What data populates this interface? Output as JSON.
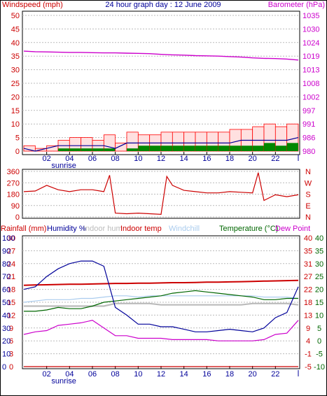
{
  "title": "24 hour graph day : 12 June 2009",
  "colors": {
    "wind": "#cc0000",
    "gust": "#ff0000",
    "avgwind": "#000099",
    "dir": "#cc0000",
    "baro": "#cc00cc",
    "hum": "#000099",
    "indoorhum": "#bbbbbb",
    "indoortemp": "#cc0000",
    "windchill": "#aaccee",
    "temp": "#006600",
    "dew": "#cc00cc",
    "rain": "#cc0000",
    "grid": "#bbbbbb"
  },
  "panel1": {
    "left_label": "Windspeed (mph)",
    "right_label": "Barometer (hPa)",
    "left_ticks": [
      "50",
      "45",
      "40",
      "35",
      "30",
      "25",
      "20",
      "15",
      "10",
      "5",
      "0"
    ],
    "right_ticks": [
      "1035",
      "1030",
      "1024",
      "1019",
      "1013",
      "1008",
      "1002",
      "997",
      "991",
      "986",
      "980"
    ]
  },
  "panel2": {
    "left_ticks": [
      "360",
      "270",
      "180",
      "90",
      "0"
    ],
    "right_ticks": [
      "N",
      "W",
      "S",
      "E",
      "N"
    ]
  },
  "panel3": {
    "labels": {
      "rain": "Rainfall (mm)",
      "hum": "Humidity %",
      "indoorhum": "Indoor hum",
      "indoortemp": "Indoor temp",
      "windchill": "Windchill",
      "temp": "Temperature (°C)",
      "dew": "Dew Point"
    },
    "rain_ticks": [
      "30",
      "27",
      "24",
      "21",
      "18",
      "15",
      "12",
      "9",
      "6",
      "3",
      "0"
    ],
    "hum_ticks": [
      "100",
      "90",
      "80",
      "70",
      "60",
      "50",
      "40",
      "30",
      "20",
      "10",
      "0"
    ],
    "temp_ticks_a": [
      "40",
      "35",
      "31",
      "27",
      "22",
      "18",
      "13",
      "9",
      "4",
      "-1",
      "-5"
    ],
    "temp_ticks_b": [
      "40",
      "35",
      "30",
      "25",
      "20",
      "15",
      "10",
      "5",
      "0",
      "-5",
      "-10"
    ]
  },
  "x_ticks": [
    "02",
    "04",
    "06",
    "08",
    "10",
    "12",
    "14",
    "16",
    "18",
    "20",
    "22",
    "|"
  ],
  "sunrise_label": "sunrise",
  "chart_data": [
    {
      "type": "line",
      "title": "24 hour graph day : 12 June 2009",
      "ylabel": "Windspeed (mph)",
      "y2label": "Barometer (hPa)",
      "ylim": [
        0,
        50
      ],
      "y2lim": [
        980,
        1035
      ],
      "x_hours": [
        0,
        1,
        2,
        3,
        4,
        5,
        6,
        7,
        8,
        9,
        10,
        11,
        12,
        13,
        14,
        15,
        16,
        17,
        18,
        19,
        20,
        21,
        22,
        23,
        24
      ],
      "series": [
        {
          "name": "Barometer",
          "values": [
            1020.5,
            1020.3,
            1020.2,
            1020.1,
            1020.0,
            1020.0,
            1019.9,
            1019.8,
            1019.8,
            1019.7,
            1019.6,
            1019.5,
            1019.2,
            1019.0,
            1018.9,
            1018.7,
            1018.6,
            1018.5,
            1018.3,
            1018.1,
            1017.8,
            1017.6,
            1017.5,
            1017.3,
            1016.9
          ]
        },
        {
          "values": [
            2,
            1,
            2,
            4,
            5,
            5,
            4,
            6,
            3,
            7,
            6,
            6,
            7,
            7,
            7,
            7,
            7,
            7,
            8,
            8,
            9,
            10,
            9,
            10,
            12
          ]
        },
        {
          "values": [
            1,
            0,
            1,
            2,
            2,
            2,
            2,
            2,
            1,
            3,
            3,
            3,
            3,
            3,
            3,
            3,
            3,
            3,
            3,
            4,
            4,
            4,
            4,
            4,
            5
          ]
        },
        {
          "values": [
            0,
            0,
            0,
            1,
            1,
            1,
            1,
            1,
            0,
            1,
            2,
            2,
            2,
            2,
            2,
            2,
            2,
            2,
            2,
            2,
            2,
            3,
            2,
            3,
            4
          ]
        }
      ]
    },
    {
      "type": "line",
      "ylim": [
        0,
        360
      ],
      "x_hours": [
        0,
        1,
        2,
        3,
        4,
        5,
        6,
        7,
        7.5,
        8,
        9,
        10,
        11,
        12,
        12.5,
        13,
        14,
        15,
        16,
        17,
        18,
        19,
        20,
        20.5,
        21,
        22,
        23,
        24
      ],
      "series": [
        {
          "values": [
            200,
            205,
            250,
            215,
            200,
            215,
            215,
            200,
            330,
            30,
            25,
            30,
            25,
            20,
            320,
            250,
            210,
            200,
            190,
            190,
            200,
            195,
            190,
            350,
            130,
            175,
            160,
            175
          ]
        }
      ]
    },
    {
      "type": "line",
      "x_hours": [
        0,
        1,
        2,
        3,
        4,
        5,
        6,
        7,
        8,
        9,
        10,
        11,
        12,
        13,
        14,
        15,
        16,
        17,
        18,
        19,
        20,
        21,
        22,
        23,
        24
      ],
      "series": [
        {
          "name": "Humidity %",
          "axis": "humidity",
          "ylim": [
            0,
            100
          ],
          "values": [
            60,
            62,
            70,
            76,
            80,
            82,
            82,
            78,
            46,
            40,
            33,
            33,
            31,
            31,
            29,
            27,
            27,
            28,
            29,
            28,
            27,
            30,
            38,
            42,
            62
          ]
        },
        {
          "name": "Indoor hum",
          "axis": "humidity",
          "ylim": [
            0,
            100
          ],
          "values": [
            47,
            47,
            47,
            47,
            47,
            47,
            47,
            47,
            49,
            49,
            49,
            49,
            48,
            48,
            48,
            48,
            48,
            48,
            48,
            48,
            49,
            49,
            49,
            49,
            48
          ]
        },
        {
          "name": "Indoor temp",
          "axis": "temperature",
          "ylim": [
            -10,
            40
          ],
          "values": [
            21.6,
            21.7,
            21.8,
            21.9,
            22.0,
            22.0,
            22.1,
            22.2,
            22.3,
            22.3,
            22.4,
            22.4,
            22.5,
            22.6,
            22.6,
            22.7,
            22.8,
            22.8,
            22.9,
            23.0,
            23.1,
            23.2,
            23.3,
            23.4,
            23.5
          ]
        },
        {
          "name": "Windchill",
          "axis": "temperature",
          "ylim": [
            -10,
            40
          ],
          "values": [
            15,
            15.5,
            16,
            16,
            16,
            16.5,
            16.5,
            17,
            17.5,
            17.5,
            17,
            17.5,
            17.5,
            17.5,
            17.5,
            17.5,
            17.5,
            17.5,
            17.5,
            17.5,
            17.5,
            17,
            17,
            17,
            16.5
          ]
        },
        {
          "name": "Temperature (°C)",
          "axis": "temperature",
          "ylim": [
            -10,
            40
          ],
          "values": [
            11.5,
            11.5,
            12,
            13,
            12.5,
            12.5,
            13.5,
            15,
            15.5,
            16,
            16.5,
            17,
            17.5,
            18.5,
            19,
            19.5,
            19,
            18.5,
            18,
            17.5,
            17,
            16,
            16,
            16.5,
            16.5
          ]
        },
        {
          "name": "Dew Point",
          "axis": "temperature",
          "ylim": [
            -10,
            40
          ],
          "values": [
            2.5,
            3.5,
            4,
            6,
            6.5,
            7,
            8,
            5,
            2,
            2,
            1,
            1,
            1,
            0.5,
            0.5,
            0.5,
            0.5,
            0,
            0,
            0,
            0,
            0.5,
            2.5,
            3,
            8
          ]
        },
        {
          "name": "Rainfall (mm)",
          "axis": "rainfall",
          "ylim": [
            0,
            30
          ],
          "values": [
            0,
            0,
            0,
            0,
            0,
            0,
            0,
            0,
            0,
            0,
            0,
            0,
            0,
            0,
            0,
            0,
            0,
            0,
            0,
            0,
            0,
            0,
            0,
            0,
            0
          ]
        }
      ]
    }
  ]
}
